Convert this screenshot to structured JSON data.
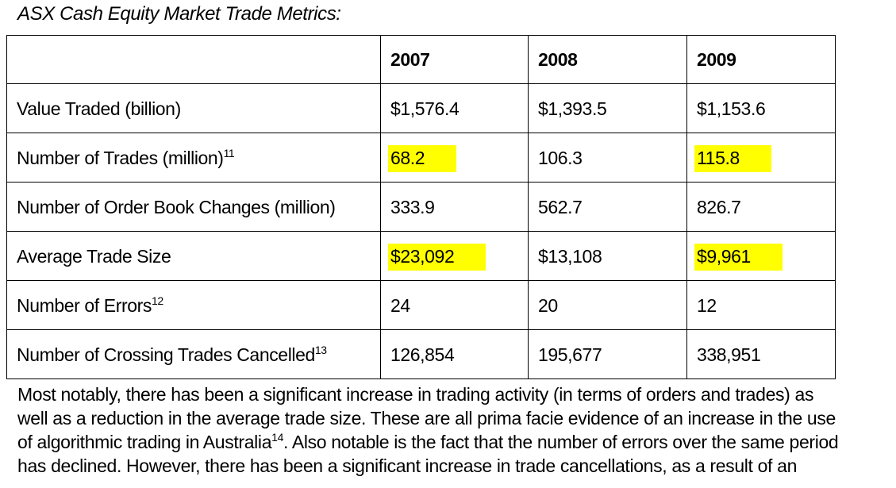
{
  "caption": "ASX Cash Equity Market Trade Metrics:",
  "highlight_color": "#ffff00",
  "table": {
    "headers": [
      "",
      "2007",
      "2008",
      "2009"
    ],
    "rows": [
      {
        "label": "Value Traded (billion)",
        "sup": "",
        "values": [
          "$1,576.4",
          "$1,393.5",
          "$1,153.6"
        ]
      },
      {
        "label": "Number of Trades (million)",
        "sup": "11",
        "values": [
          "68.2",
          "106.3",
          "115.8"
        ]
      },
      {
        "label": "Number of Order Book Changes (million)",
        "sup": "",
        "values": [
          "333.9",
          "562.7",
          "826.7"
        ]
      },
      {
        "label": "Average Trade Size",
        "sup": "",
        "values": [
          "$23,092",
          "$13,108",
          "$9,961"
        ]
      },
      {
        "label": "Number of Errors",
        "sup": "12",
        "values": [
          "24",
          "20",
          "12"
        ]
      },
      {
        "label": "Number of Crossing Trades Cancelled",
        "sup": "13",
        "values": [
          "126,854",
          "195,677",
          "338,951"
        ]
      }
    ]
  },
  "paragraph": {
    "line1": "Most notably, there has been a significant increase in trading activity (in terms of orders and trades) as",
    "line2": "well as a reduction in the average trade size.  These are all prima facie evidence of an increase in the use",
    "line3_a": "of algorithmic trading in Australia",
    "line3_sup": "14",
    "line3_b": ".  Also notable is the fact that the number of errors over the same period",
    "line4": "has declined.  However, there has been a significant increase in trade cancellations, as a result of an"
  }
}
